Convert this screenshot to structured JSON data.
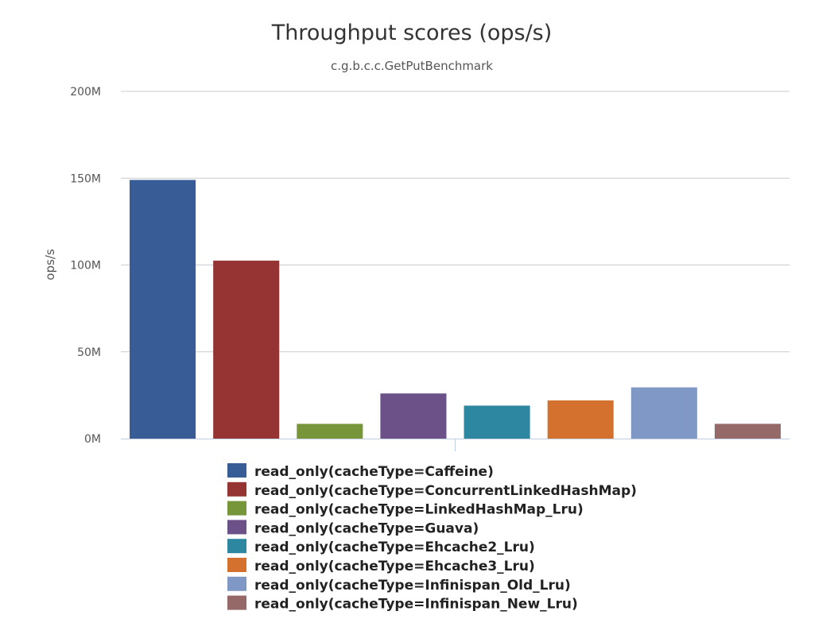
{
  "chart_data": {
    "type": "bar",
    "title": "Throughput scores (ops/s)",
    "subtitle": "c.g.b.c.c.GetPutBenchmark",
    "xlabel": "",
    "ylabel": "ops/s",
    "ylim": [
      0,
      200000000
    ],
    "yticks": [
      {
        "value": 0,
        "label": "0M"
      },
      {
        "value": 50000000,
        "label": "50M"
      },
      {
        "value": 100000000,
        "label": "100M"
      },
      {
        "value": 150000000,
        "label": "150M"
      },
      {
        "value": 200000000,
        "label": "200M"
      }
    ],
    "grid": true,
    "legend_position": "bottom",
    "series": [
      {
        "name": "read_only(cacheType=Caffeine)",
        "value": 149000000,
        "color": "#385d96"
      },
      {
        "name": "read_only(cacheType=ConcurrentLinkedHashMap)",
        "value": 102500000,
        "color": "#963434"
      },
      {
        "name": "read_only(cacheType=LinkedHashMap_Lru)",
        "value": 8500000,
        "color": "#77963a"
      },
      {
        "name": "read_only(cacheType=Guava)",
        "value": 26000000,
        "color": "#6c5189"
      },
      {
        "name": "read_only(cacheType=Ehcache2_Lru)",
        "value": 19000000,
        "color": "#2e87a1"
      },
      {
        "name": "read_only(cacheType=Ehcache3_Lru)",
        "value": 22000000,
        "color": "#d5712f"
      },
      {
        "name": "read_only(cacheType=Infinispan_Old_Lru)",
        "value": 29500000,
        "color": "#8098c5"
      },
      {
        "name": "read_only(cacheType=Infinispan_New_Lru)",
        "value": 8500000,
        "color": "#966969"
      }
    ]
  }
}
